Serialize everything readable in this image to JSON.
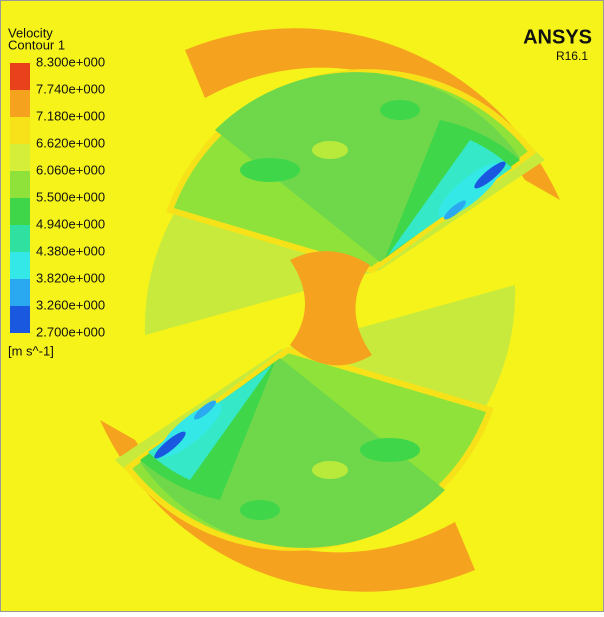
{
  "legend": {
    "title": "Velocity",
    "subtitle": "Contour 1",
    "levels": [
      "8.300e+000",
      "7.740e+000",
      "7.180e+000",
      "6.620e+000",
      "6.060e+000",
      "5.500e+000",
      "4.940e+000",
      "4.380e+000",
      "3.820e+000",
      "3.260e+000",
      "2.700e+000"
    ],
    "colors": [
      "#e8411c",
      "#f5a21e",
      "#f7e21a",
      "#d5ee3a",
      "#8ee23a",
      "#3fd64a",
      "#2fe0a0",
      "#35e8e8",
      "#2aa8f0",
      "#1a58e0"
    ],
    "unit": "[m s^-1]"
  },
  "brand": {
    "name": "ANSYS",
    "version": "R16.1"
  }
}
